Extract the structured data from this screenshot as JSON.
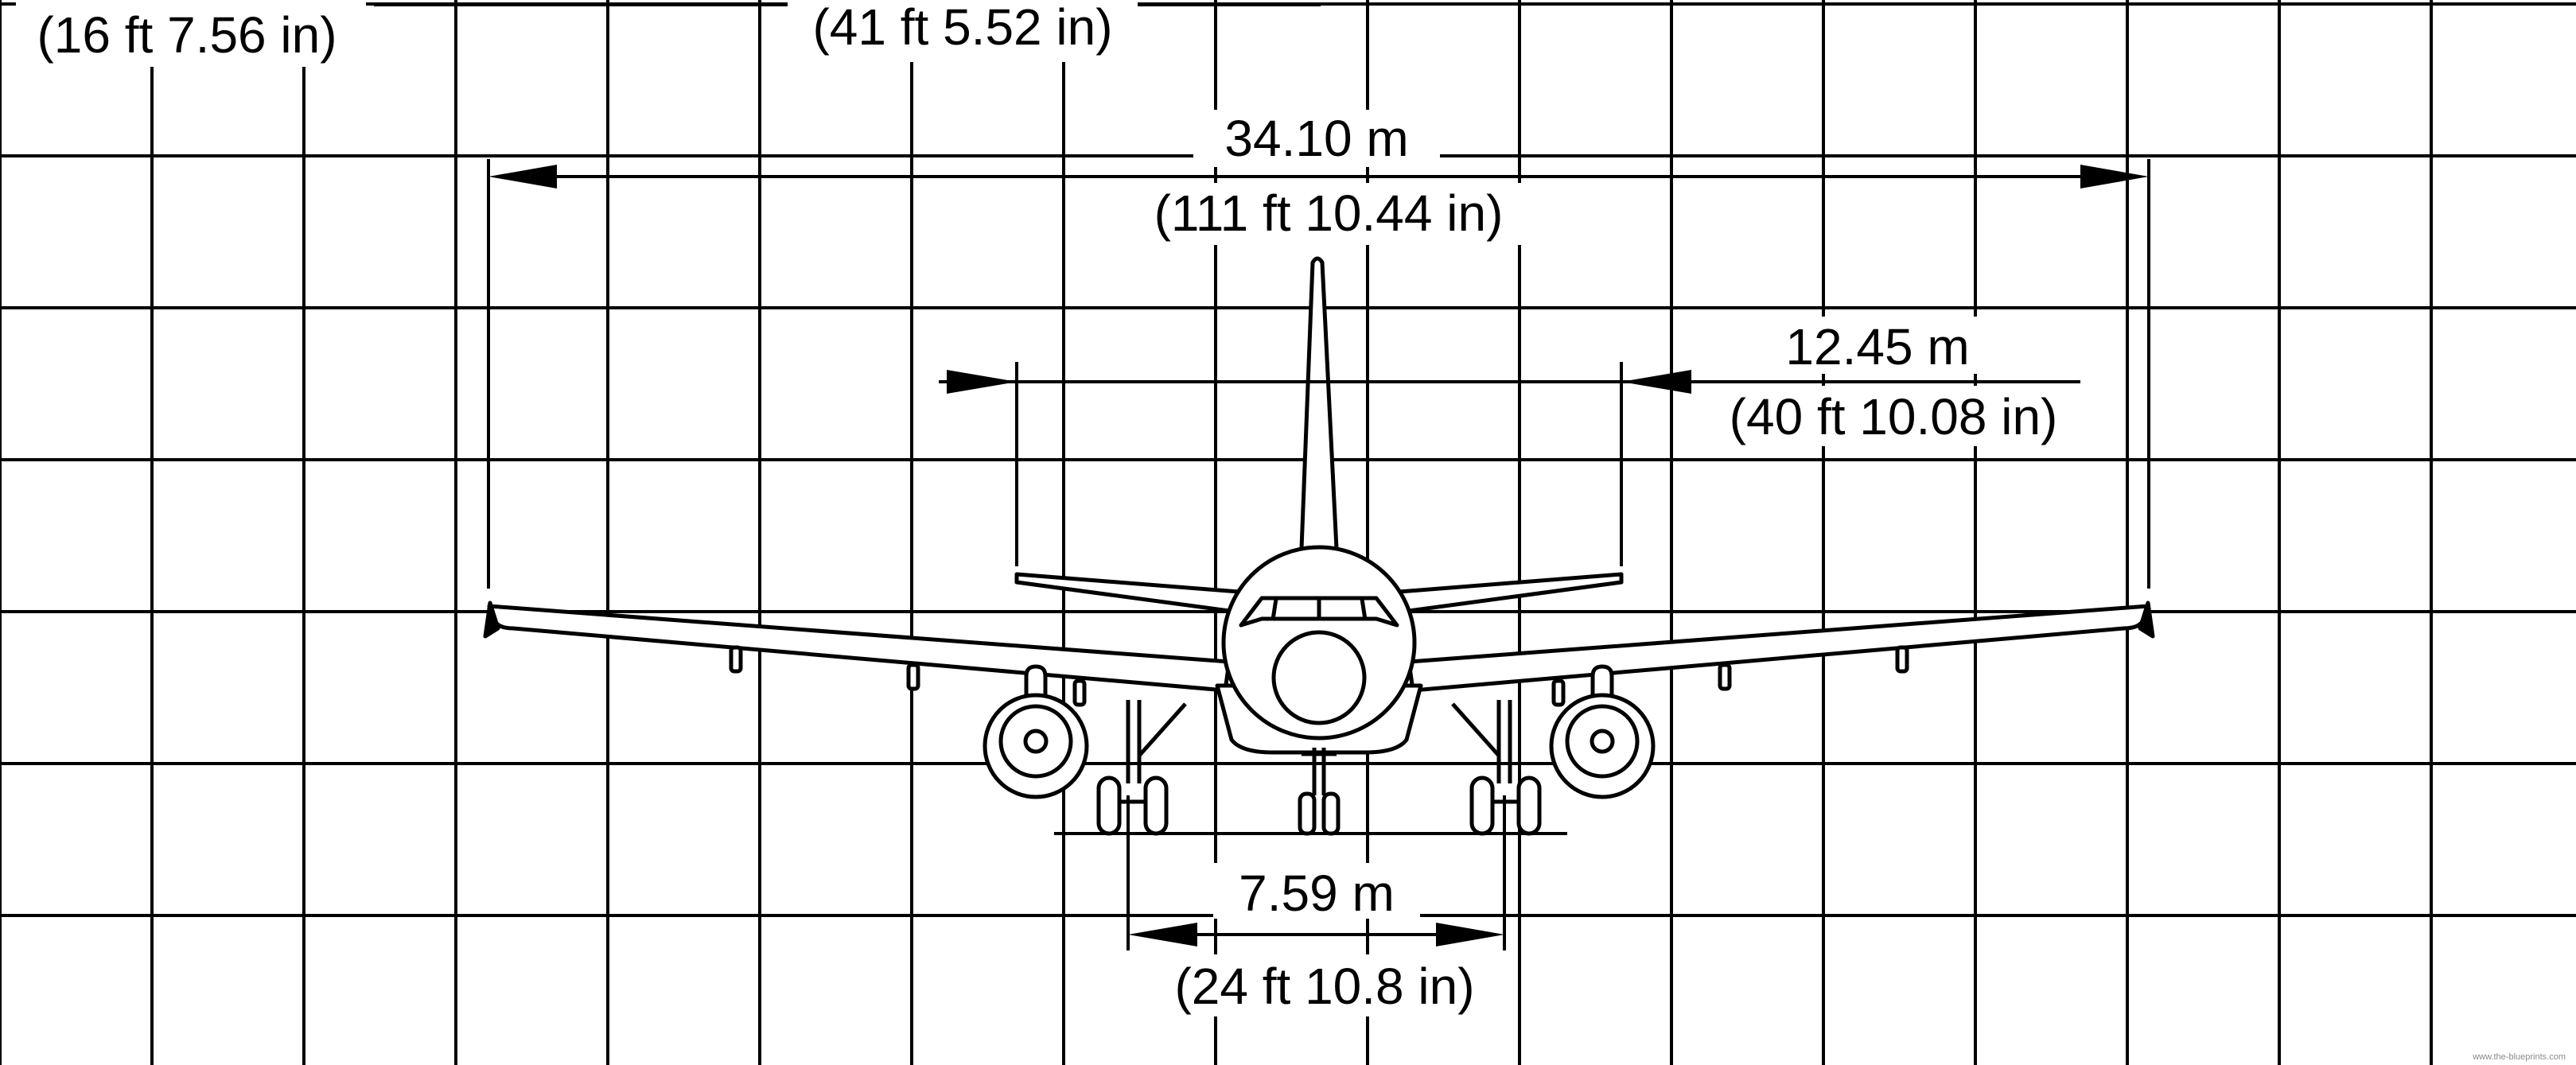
{
  "labels": {
    "top_left_imperial": "(16 ft 7.56 in)",
    "top_center_imperial": "(41 ft 5.52 in)",
    "wingspan_metric": "34.10 m",
    "wingspan_imperial": "(111 ft 10.44 in)",
    "tailplane_metric": "12.45 m",
    "tailplane_imperial": "(40 ft 10.08 in)",
    "track_metric": "7.59 m",
    "track_imperial": "(24 ft 10.8 in)"
  },
  "credit": "www.the-blueprints.com",
  "colors": {
    "ink": "#000000",
    "paper": "#ffffff"
  }
}
